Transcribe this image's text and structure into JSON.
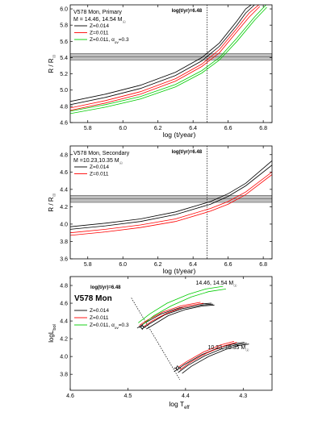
{
  "chart_data": [
    {
      "type": "line",
      "panel": "top",
      "title": "V578 Mon, Primary",
      "subtitle": "M = 14.46, 14.54 M",
      "subtitle_sub": "☉",
      "xlabel": "log (t/year)",
      "ylabel": "R / R",
      "ylabel_sub": "☉",
      "xlim": [
        5.7,
        6.85
      ],
      "ylim": [
        4.6,
        6.05
      ],
      "xticks": [
        "5.8",
        "6.0",
        "6.2",
        "6.4",
        "6.6",
        "6.8"
      ],
      "yticks": [
        "4.6",
        "4.8",
        "5.0",
        "5.2",
        "5.4",
        "5.6",
        "5.8",
        "6.0"
      ],
      "annotation": "log(t/yr)=6.48",
      "vline_x": 6.48,
      "band": {
        "center": 5.41,
        "halfwidth": 0.04
      },
      "legend": [
        "Z=0.014",
        "Z=0.011",
        "Z=0.011, α"
      ],
      "legend_sub": "ov",
      "legend_suffix": "=0.3",
      "series": [
        {
          "color": "#000000",
          "x": [
            5.7,
            5.9,
            6.1,
            6.3,
            6.45,
            6.55,
            6.65,
            6.7,
            6.75
          ],
          "y": [
            4.86,
            4.95,
            5.06,
            5.22,
            5.4,
            5.58,
            5.85,
            6.0,
            6.08
          ]
        },
        {
          "color": "#000000",
          "x": [
            5.7,
            5.9,
            6.1,
            6.3,
            6.45,
            6.55,
            6.65,
            6.7,
            6.75
          ],
          "y": [
            4.82,
            4.91,
            5.02,
            5.18,
            5.36,
            5.54,
            5.8,
            5.95,
            6.05
          ]
        },
        {
          "color": "#ff0000",
          "x": [
            5.7,
            5.9,
            6.1,
            6.3,
            6.45,
            6.55,
            6.65,
            6.72,
            6.78
          ],
          "y": [
            4.78,
            4.87,
            4.98,
            5.14,
            5.32,
            5.5,
            5.76,
            5.95,
            6.06
          ]
        },
        {
          "color": "#ff0000",
          "x": [
            5.7,
            5.9,
            6.1,
            6.3,
            6.45,
            6.55,
            6.65,
            6.72,
            6.78
          ],
          "y": [
            4.75,
            4.84,
            4.95,
            5.11,
            5.29,
            5.46,
            5.72,
            5.9,
            6.03
          ]
        },
        {
          "color": "#00cc00",
          "x": [
            5.7,
            5.9,
            6.1,
            6.3,
            6.45,
            6.55,
            6.65,
            6.75,
            6.82
          ],
          "y": [
            4.74,
            4.82,
            4.92,
            5.07,
            5.24,
            5.4,
            5.64,
            5.9,
            6.06
          ]
        },
        {
          "color": "#00cc00",
          "x": [
            5.7,
            5.9,
            6.1,
            6.3,
            6.45,
            6.55,
            6.65,
            6.75,
            6.82
          ],
          "y": [
            4.71,
            4.79,
            4.89,
            5.04,
            5.21,
            5.37,
            5.6,
            5.86,
            6.02
          ]
        }
      ]
    },
    {
      "type": "line",
      "panel": "middle",
      "title": "V578 Mon, Secondary",
      "subtitle": "M =10.23,10.35 M",
      "subtitle_sub": "☉",
      "xlabel": "log (t/year)",
      "ylabel": "R / R",
      "ylabel_sub": "☉",
      "xlim": [
        5.7,
        6.85
      ],
      "ylim": [
        3.6,
        4.9
      ],
      "xticks": [
        "5.8",
        "6.0",
        "6.2",
        "6.4",
        "6.6",
        "6.8"
      ],
      "yticks": [
        "3.6",
        "3.8",
        "4.0",
        "4.2",
        "4.4",
        "4.6",
        "4.8"
      ],
      "annotation": "log(t/yr)=6.48",
      "vline_x": 6.48,
      "band": {
        "center": 4.29,
        "halfwidth": 0.04
      },
      "legend": [
        "Z=0.014",
        "Z=0.011"
      ],
      "series": [
        {
          "color": "#000000",
          "x": [
            5.7,
            5.9,
            6.1,
            6.3,
            6.5,
            6.6,
            6.7,
            6.85
          ],
          "y": [
            3.97,
            4.01,
            4.06,
            4.14,
            4.26,
            4.35,
            4.47,
            4.73
          ]
        },
        {
          "color": "#000000",
          "x": [
            5.7,
            5.9,
            6.1,
            6.3,
            6.5,
            6.6,
            6.7,
            6.85
          ],
          "y": [
            3.94,
            3.98,
            4.03,
            4.11,
            4.23,
            4.32,
            4.44,
            4.68
          ]
        },
        {
          "color": "#ff0000",
          "x": [
            5.7,
            5.9,
            6.1,
            6.3,
            6.5,
            6.6,
            6.7,
            6.85
          ],
          "y": [
            3.9,
            3.94,
            3.99,
            4.06,
            4.18,
            4.26,
            4.37,
            4.6
          ]
        },
        {
          "color": "#ff0000",
          "x": [
            5.7,
            5.9,
            6.1,
            6.3,
            6.5,
            6.6,
            6.7,
            6.85
          ],
          "y": [
            3.87,
            3.91,
            3.96,
            4.03,
            4.15,
            4.23,
            4.34,
            4.57
          ]
        }
      ]
    },
    {
      "type": "line",
      "panel": "bottom",
      "title": "V578 Mon",
      "xlabel": "log T",
      "xlabel_sub": "eff",
      "ylabel": "logL",
      "ylabel_sub": "bol",
      "xlim": [
        4.6,
        4.25
      ],
      "ylim": [
        3.62,
        4.9
      ],
      "xticks": [
        "4.6",
        "4.5",
        "4.4",
        "4.3"
      ],
      "yticks": [
        "3.8",
        "4.0",
        "4.2",
        "4.4",
        "4.6",
        "4.8"
      ],
      "annotation": "log(t/yr)=6.48",
      "mass_labels": [
        {
          "text": "14.46, 14.54 M",
          "sub": "☉"
        },
        {
          "text": "10.23, 10.35 M",
          "sub": "☉"
        }
      ],
      "legend": [
        "Z=0.014",
        "Z=0.011",
        "Z=0.011, α"
      ],
      "legend_sub": "ov",
      "legend_suffix": "=0.3",
      "isochrone": {
        "x": [
          4.494,
          4.41
        ],
        "y": [
          4.66,
          3.74
        ]
      },
      "stars": [
        {
          "x": 4.475,
          "y": 4.33,
          "xerr": 0.006,
          "yerr": 0.03
        },
        {
          "x": 4.414,
          "y": 3.87,
          "xerr": 0.006,
          "yerr": 0.03
        }
      ],
      "series": [
        {
          "color": "#000000",
          "x": [
            4.468,
            4.455,
            4.43,
            4.4,
            4.37,
            4.35
          ],
          "y": [
            4.31,
            4.36,
            4.46,
            4.53,
            4.57,
            4.58
          ]
        },
        {
          "color": "#000000",
          "x": [
            4.476,
            4.462,
            4.436,
            4.405,
            4.372,
            4.352
          ],
          "y": [
            4.31,
            4.37,
            4.47,
            4.54,
            4.58,
            4.59
          ]
        },
        {
          "color": "#000000",
          "x": [
            4.484,
            4.47,
            4.442,
            4.41,
            4.376,
            4.355
          ],
          "y": [
            4.32,
            4.38,
            4.48,
            4.55,
            4.59,
            4.6
          ]
        },
        {
          "color": "#ff0000",
          "x": [
            4.472,
            4.458,
            4.432,
            4.402,
            4.369
          ],
          "y": [
            4.34,
            4.4,
            4.49,
            4.56,
            4.6
          ]
        },
        {
          "color": "#ff0000",
          "x": [
            4.48,
            4.466,
            4.44,
            4.408,
            4.374
          ],
          "y": [
            4.35,
            4.41,
            4.5,
            4.57,
            4.61
          ]
        },
        {
          "color": "#00cc00",
          "x": [
            4.474,
            4.455,
            4.425,
            4.39,
            4.36,
            4.33
          ],
          "y": [
            4.36,
            4.46,
            4.57,
            4.67,
            4.73,
            4.76
          ]
        },
        {
          "color": "#00cc00",
          "x": [
            4.482,
            4.462,
            4.432,
            4.395,
            4.365,
            4.335
          ],
          "y": [
            4.38,
            4.48,
            4.6,
            4.7,
            4.76,
            4.79
          ]
        },
        {
          "color": "#000000",
          "x": [
            4.406,
            4.39,
            4.36,
            4.33,
            4.31,
            4.29
          ],
          "y": [
            3.81,
            3.89,
            4.0,
            4.08,
            4.12,
            4.14
          ]
        },
        {
          "color": "#000000",
          "x": [
            4.413,
            4.396,
            4.366,
            4.336,
            4.314,
            4.294
          ],
          "y": [
            3.82,
            3.9,
            4.01,
            4.09,
            4.13,
            4.15
          ]
        },
        {
          "color": "#000000",
          "x": [
            4.42,
            4.402,
            4.372,
            4.342,
            4.318,
            4.298
          ],
          "y": [
            3.83,
            3.91,
            4.02,
            4.1,
            4.14,
            4.16
          ]
        },
        {
          "color": "#ff0000",
          "x": [
            4.41,
            4.393,
            4.363,
            4.333,
            4.311
          ],
          "y": [
            3.85,
            3.93,
            4.04,
            4.12,
            4.16
          ]
        },
        {
          "color": "#ff0000",
          "x": [
            4.417,
            4.399,
            4.369,
            4.339,
            4.316
          ],
          "y": [
            3.86,
            3.94,
            4.05,
            4.13,
            4.17
          ]
        }
      ]
    }
  ]
}
